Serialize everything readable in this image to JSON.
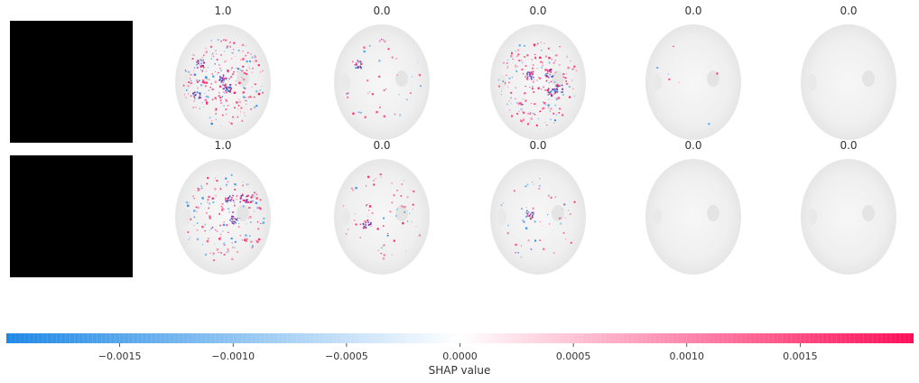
{
  "chart_data": {
    "type": "image-grid",
    "title": "",
    "rows": [
      {
        "input_image": "black-square",
        "panels": [
          {
            "label": "1.0",
            "attribution_density": 0.9
          },
          {
            "label": "0.0",
            "attribution_density": 0.15
          },
          {
            "label": "0.0",
            "attribution_density": 0.75
          },
          {
            "label": "0.0",
            "attribution_density": 0.03
          },
          {
            "label": "0.0",
            "attribution_density": 0.0
          }
        ]
      },
      {
        "input_image": "black-square",
        "panels": [
          {
            "label": "1.0",
            "attribution_density": 0.65
          },
          {
            "label": "0.0",
            "attribution_density": 0.25
          },
          {
            "label": "0.0",
            "attribution_density": 0.2
          },
          {
            "label": "0.0",
            "attribution_density": 0.0
          },
          {
            "label": "0.0",
            "attribution_density": 0.0
          }
        ]
      }
    ],
    "colorbar": {
      "label": "SHAP value",
      "range": [
        -0.002,
        0.002
      ],
      "ticks": [
        -0.0015,
        -0.001,
        -0.0005,
        0.0,
        0.0005,
        0.001,
        0.0015
      ],
      "tick_labels": [
        "−0.0015",
        "−0.0010",
        "−0.0005",
        "0.0000",
        "0.0005",
        "0.0010",
        "0.0015"
      ],
      "color_negative": "#1e88e5",
      "color_zero": "#ffffff",
      "color_positive": "#ff0d57"
    }
  }
}
